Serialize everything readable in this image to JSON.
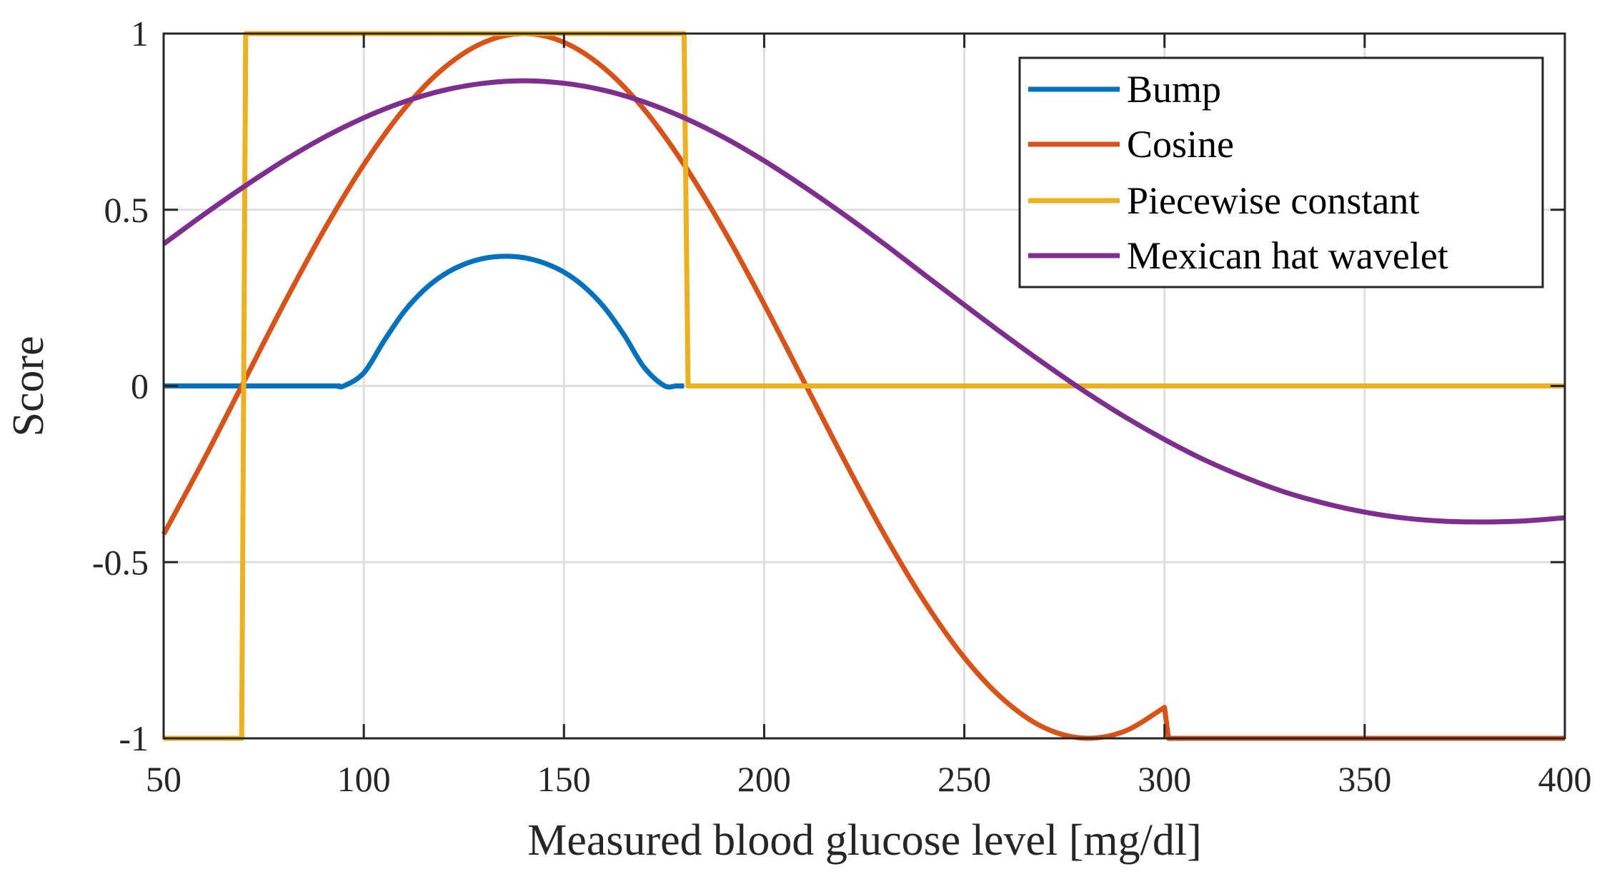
{
  "chart_data": {
    "type": "line",
    "title": "",
    "xlabel": "Measured blood glucose level [mg/dl]",
    "ylabel": "Score",
    "xlim": [
      50,
      400
    ],
    "ylim": [
      -1,
      1
    ],
    "xticks": [
      50,
      100,
      150,
      200,
      250,
      300,
      350,
      400
    ],
    "xtick_labels": [
      "50",
      "100",
      "150",
      "200",
      "250",
      "300",
      "350",
      "400"
    ],
    "yticks": [
      -1,
      -0.5,
      0,
      0.5,
      1
    ],
    "ytick_labels": [
      "-1",
      "-0.5",
      "0",
      "0.5",
      "1"
    ],
    "grid": true,
    "legend_position": "top-right",
    "series": [
      {
        "name": "Bump",
        "color": "#0072BD",
        "smooth": true,
        "x": [
          50,
          90,
          93,
          95,
          100,
          105,
          110,
          115,
          120,
          125,
          130,
          135,
          140,
          145,
          150,
          155,
          160,
          165,
          170,
          175,
          178,
          180
        ],
        "y": [
          0,
          0,
          0,
          0.0,
          0.037,
          0.127,
          0.21,
          0.272,
          0.316,
          0.345,
          0.362,
          0.368,
          0.364,
          0.349,
          0.323,
          0.282,
          0.224,
          0.145,
          0.053,
          0.001,
          0,
          0
        ]
      },
      {
        "name": "Cosine",
        "color": "#D95319",
        "smooth": true,
        "x": [
          50,
          60,
          70,
          80,
          90,
          100,
          110,
          120,
          130,
          140,
          150,
          160,
          170,
          180,
          190,
          200,
          210,
          220,
          230,
          240,
          250,
          260,
          270,
          280,
          290,
          300
        ],
        "y": [
          -0.421,
          -0.21,
          0.011,
          0.232,
          0.441,
          0.628,
          0.785,
          0.902,
          0.975,
          1.0,
          0.975,
          0.902,
          0.785,
          0.628,
          0.441,
          0.232,
          0.011,
          -0.21,
          -0.421,
          -0.611,
          -0.771,
          -0.892,
          -0.97,
          -0.9995,
          -0.98,
          -0.912
        ],
        "tail": {
          "x": [
            300,
            301,
            400
          ],
          "y": [
            -0.912,
            -1,
            -1
          ]
        }
      },
      {
        "name": "Piecewise constant",
        "color": "#EDB120",
        "smooth": false,
        "x": [
          50,
          69.5,
          70.5,
          180,
          181,
          400
        ],
        "y": [
          -1,
          -1,
          1,
          1,
          0,
          0
        ]
      },
      {
        "name": "Mexican hat wavelet",
        "color": "#7E2F8E",
        "smooth": true,
        "x": [
          50,
          60,
          70,
          80,
          90,
          100,
          110,
          120,
          130,
          140,
          150,
          160,
          170,
          180,
          190,
          200,
          210,
          220,
          230,
          240,
          250,
          260,
          270,
          280,
          290,
          300,
          310,
          320,
          330,
          340,
          350,
          360,
          370,
          380,
          390,
          400
        ],
        "y": [
          0.403,
          0.486,
          0.565,
          0.639,
          0.705,
          0.761,
          0.806,
          0.839,
          0.859,
          0.866,
          0.859,
          0.839,
          0.806,
          0.761,
          0.705,
          0.639,
          0.565,
          0.486,
          0.403,
          0.316,
          0.23,
          0.145,
          0.063,
          -0.015,
          -0.087,
          -0.152,
          -0.21,
          -0.259,
          -0.301,
          -0.333,
          -0.358,
          -0.375,
          -0.384,
          -0.386,
          -0.383,
          -0.374
        ]
      }
    ]
  }
}
